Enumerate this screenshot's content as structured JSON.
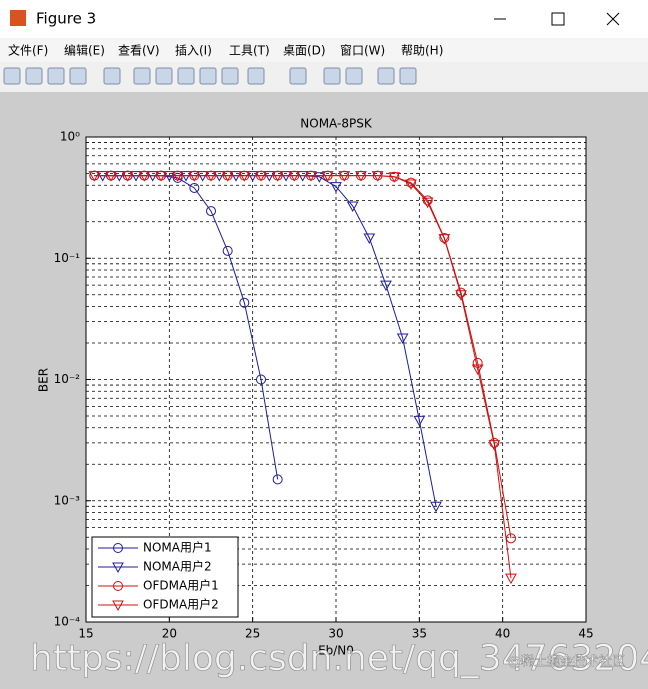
{
  "window": {
    "title": "Figure 3",
    "menus": [
      "文件(F)",
      "编辑(E)",
      "查看(V)",
      "插入(I)",
      "工具(T)",
      "桌面(D)",
      "窗口(W)",
      "帮助(H)"
    ],
    "watermark": "https://blog.csdn.net/qq_34763204",
    "watermark_small": "@稀土掘金技术社区"
  },
  "chart_data": {
    "type": "line",
    "title": "NOMA-8PSK",
    "x_label": "Eb/N0",
    "y_label": "BER",
    "xlim": [
      15,
      45
    ],
    "xticks": [
      15,
      20,
      25,
      30,
      35,
      40,
      45
    ],
    "ylim": [
      0.0001,
      1
    ],
    "y_scale": "log",
    "yticks": [
      {
        "value": 0.0001,
        "label": "10⁻⁴"
      },
      {
        "value": 0.001,
        "label": "10⁻³"
      },
      {
        "value": 0.01,
        "label": "10⁻²"
      },
      {
        "value": 0.1,
        "label": "10⁻¹"
      },
      {
        "value": 1,
        "label": "10⁰"
      }
    ],
    "grid": true,
    "minor_grid": true,
    "legend": "lower left",
    "series": [
      {
        "name": "NOMA用户1",
        "color": "#1c1c9c",
        "marker": "circle",
        "x": [
          15.5,
          16.5,
          17.5,
          18.5,
          19.5,
          20.5,
          21.5,
          22.5,
          23.5,
          24.5,
          25.5,
          26.5
        ],
        "values": [
          0.48,
          0.48,
          0.48,
          0.48,
          0.48,
          0.46,
          0.38,
          0.245,
          0.115,
          0.043,
          0.01,
          0.0015
        ]
      },
      {
        "name": "NOMA用户2",
        "color": "#1c1c9c",
        "marker": "triangle-down",
        "x": [
          16,
          17,
          18,
          19,
          20,
          21,
          22,
          23,
          24,
          25,
          26,
          27,
          28,
          29,
          30,
          31,
          32,
          33,
          34,
          35,
          36
        ],
        "values": [
          0.48,
          0.48,
          0.48,
          0.48,
          0.48,
          0.48,
          0.48,
          0.48,
          0.48,
          0.48,
          0.48,
          0.48,
          0.48,
          0.47,
          0.39,
          0.27,
          0.147,
          0.06,
          0.022,
          0.0046,
          0.0009
        ]
      },
      {
        "name": "OFDMA用户1",
        "color": "#d01010",
        "marker": "circle",
        "x": [
          15.5,
          16.5,
          17.5,
          18.5,
          19.5,
          20.5,
          21.5,
          22.5,
          23.5,
          24.5,
          25.5,
          26.5,
          27.5,
          28.5,
          29.5,
          30.5,
          31.5,
          32.5,
          33.5,
          34.5,
          35.5,
          36.5,
          37.5,
          38.5,
          39.5,
          40.5
        ],
        "values": [
          0.48,
          0.48,
          0.48,
          0.48,
          0.48,
          0.48,
          0.48,
          0.48,
          0.48,
          0.48,
          0.48,
          0.48,
          0.48,
          0.48,
          0.48,
          0.48,
          0.48,
          0.48,
          0.47,
          0.42,
          0.3,
          0.147,
          0.052,
          0.0137,
          0.003,
          0.00049
        ]
      },
      {
        "name": "OFDMA用户2",
        "color": "#d01010",
        "marker": "triangle-down",
        "x": [
          15.5,
          16.5,
          17.5,
          18.5,
          19.5,
          20.5,
          21.5,
          22.5,
          23.5,
          24.5,
          25.5,
          26.5,
          27.5,
          28.5,
          29.5,
          30.5,
          31.5,
          32.5,
          33.5,
          34.5,
          35.5,
          36.5,
          37.5,
          38.5,
          39.5,
          40.5
        ],
        "values": [
          0.48,
          0.48,
          0.48,
          0.48,
          0.48,
          0.48,
          0.48,
          0.48,
          0.48,
          0.48,
          0.48,
          0.48,
          0.48,
          0.48,
          0.48,
          0.48,
          0.48,
          0.48,
          0.47,
          0.41,
          0.29,
          0.145,
          0.05,
          0.0122,
          0.0029,
          0.00023
        ]
      }
    ]
  }
}
